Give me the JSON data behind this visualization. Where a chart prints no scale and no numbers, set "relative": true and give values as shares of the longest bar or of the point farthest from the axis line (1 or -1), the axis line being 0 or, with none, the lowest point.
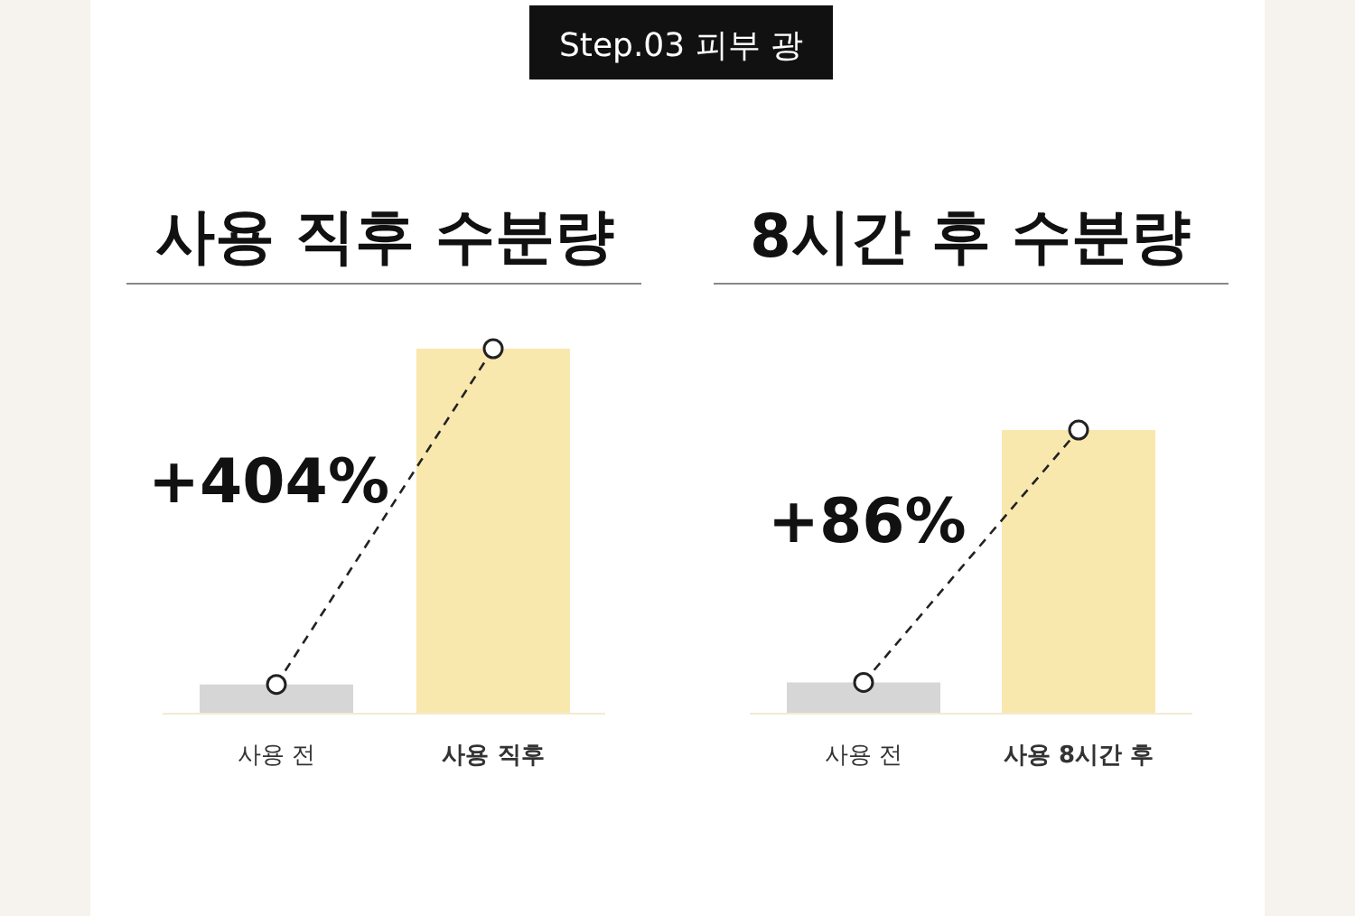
{
  "chart_data": [
    {
      "type": "bar",
      "title": "사용 직후 수분량",
      "categories": [
        "사용 전",
        "사용 직후"
      ],
      "relative": true,
      "series": [
        {
          "colors": [
            "#d6d6d6",
            "#f9e8ae"
          ],
          "values": [
            0.08,
            1
          ]
        },
        {
          "type": "line",
          "color": "#222222",
          "line_style": "dashed",
          "marker": "circle",
          "values": [
            0.08,
            1
          ]
        }
      ],
      "annotations": [
        "Step.03 피부 광",
        "+404%"
      ]
    },
    {
      "type": "bar",
      "title": "8시간 후 수분량",
      "categories": [
        "사용 전",
        "사용 8시간 후"
      ],
      "relative": true,
      "series": [
        {
          "colors": [
            "#d6d6d6",
            "#f9e8ae"
          ],
          "values": [
            0.11,
            1
          ]
        },
        {
          "type": "line",
          "color": "#222222",
          "line_style": "dashed",
          "marker": "circle",
          "values": [
            0.11,
            1
          ]
        }
      ],
      "annotations": [
        "+86%"
      ]
    }
  ]
}
